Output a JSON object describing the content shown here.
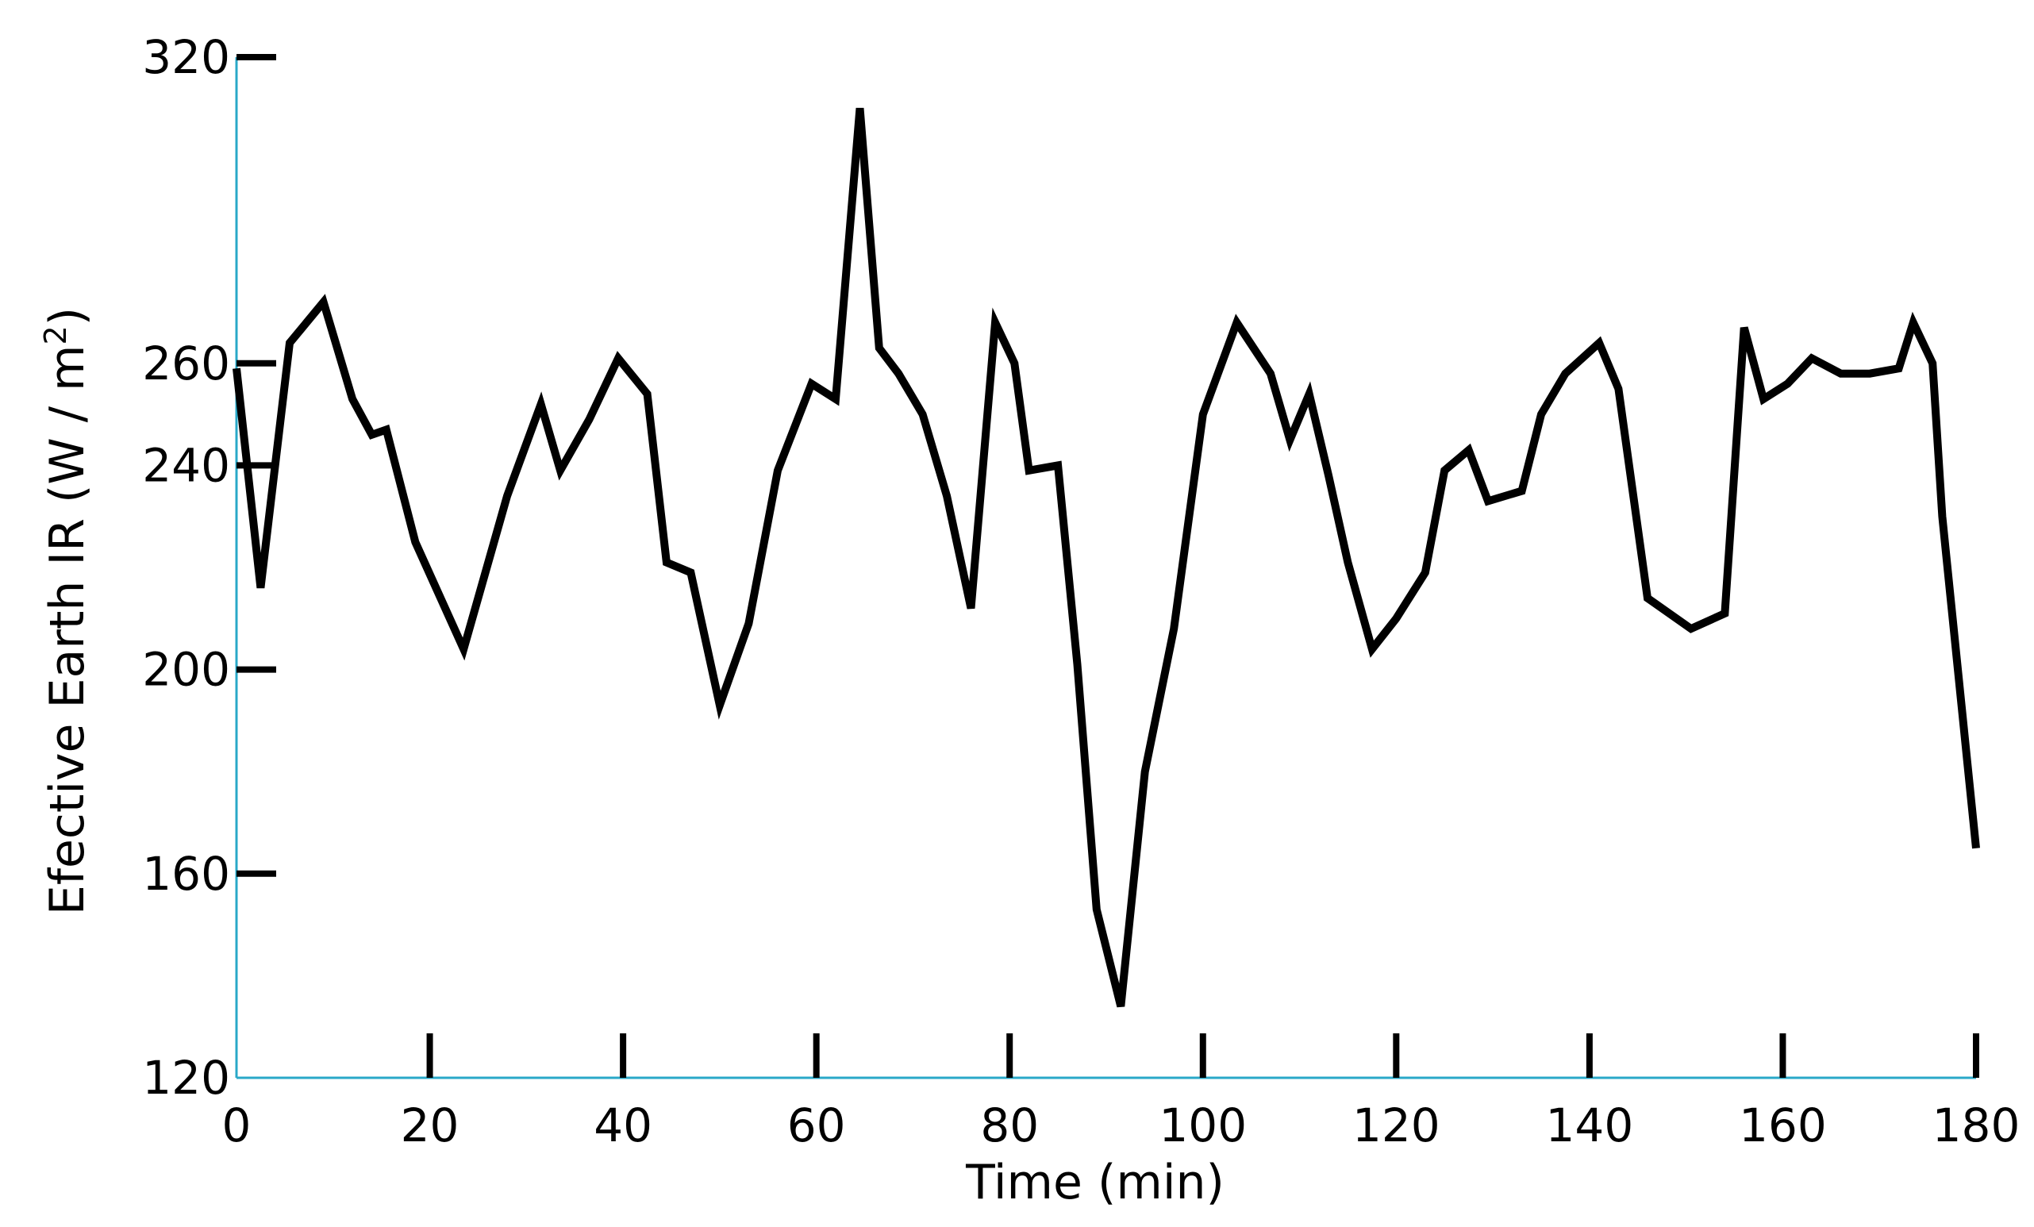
{
  "chart_data": {
    "type": "line",
    "title": "",
    "xlabel": "Time (min)",
    "ylabel_main": "Efective Earth IR (W / m",
    "ylabel_sup": "2",
    "ylabel_end": ")",
    "xlim": [
      0,
      180
    ],
    "ylim": [
      120,
      320
    ],
    "xticks": [
      0,
      20,
      40,
      60,
      80,
      100,
      120,
      140,
      160,
      180
    ],
    "yticks": [
      120,
      160,
      200,
      240,
      260,
      320
    ],
    "grid": false,
    "axis_color": "#29a8c8",
    "line_color": "#000000",
    "series": [
      {
        "x": [
          0,
          2.5,
          5.5,
          9,
          12,
          14,
          15.5,
          18.5,
          23.5,
          28,
          31.5,
          33.5,
          36.5,
          39.5,
          42.5,
          44.5,
          47,
          50,
          53,
          56,
          59.5,
          62,
          64.5,
          66.5,
          68.5,
          71,
          73.5,
          76,
          78.5,
          80.5,
          82,
          85,
          87,
          89,
          91.5,
          94,
          97,
          100,
          103.5,
          107,
          109,
          111,
          113,
          115,
          117.5,
          120,
          123,
          125,
          127.5,
          129.5,
          133,
          135,
          137.5,
          141,
          143,
          146,
          150.5,
          154,
          156,
          158,
          160.5,
          163,
          166,
          169,
          172,
          173.5,
          175.5,
          176.5,
          180
        ],
        "y": [
          259,
          216,
          264,
          272,
          253,
          246,
          247,
          225,
          204,
          234,
          252,
          239,
          249,
          261,
          254,
          221,
          219,
          193,
          209,
          239,
          256,
          253,
          310,
          263,
          258,
          250,
          234,
          212,
          268,
          260,
          239,
          240,
          201,
          153,
          134,
          180,
          208,
          250,
          268,
          258,
          245,
          254,
          238,
          221,
          204,
          210,
          219,
          239,
          243,
          233,
          235,
          250,
          258,
          264,
          255,
          214,
          208,
          211,
          267,
          253,
          256,
          261,
          258,
          258,
          259,
          268,
          260,
          230,
          165
        ]
      }
    ]
  }
}
